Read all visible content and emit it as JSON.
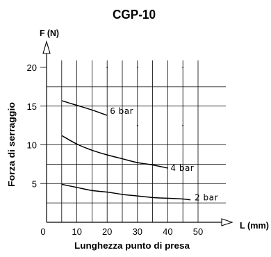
{
  "chart_data": {
    "type": "line",
    "title": "CGP-10",
    "ylabel": "F (N)",
    "xlabel": "L (mm)",
    "y_title": "Forza di serraggio",
    "x_title": "Lunghezza punto di presa",
    "xlim": [
      0,
      50
    ],
    "ylim": [
      0,
      20
    ],
    "xticks": [
      0,
      10,
      20,
      30,
      40,
      50
    ],
    "yticks": [
      5,
      10,
      15,
      20
    ],
    "grid": true,
    "series": [
      {
        "name": "6 bar",
        "x": [
          5,
          10,
          15,
          20
        ],
        "y": [
          15.7,
          15.1,
          14.5,
          13.8
        ]
      },
      {
        "name": "4 bar",
        "x": [
          5,
          10,
          15,
          20,
          25,
          30,
          35,
          40
        ],
        "y": [
          11.2,
          10.1,
          9.3,
          8.7,
          8.2,
          7.7,
          7.4,
          7.0
        ]
      },
      {
        "name": "2 bar",
        "x": [
          5,
          10,
          15,
          20,
          25,
          30,
          35,
          40,
          45,
          47.5
        ],
        "y": [
          4.9,
          4.5,
          4.1,
          3.9,
          3.6,
          3.4,
          3.2,
          3.1,
          3.0,
          2.9
        ]
      }
    ]
  },
  "colors": {
    "ink": "#000000",
    "background": "#ffffff"
  }
}
